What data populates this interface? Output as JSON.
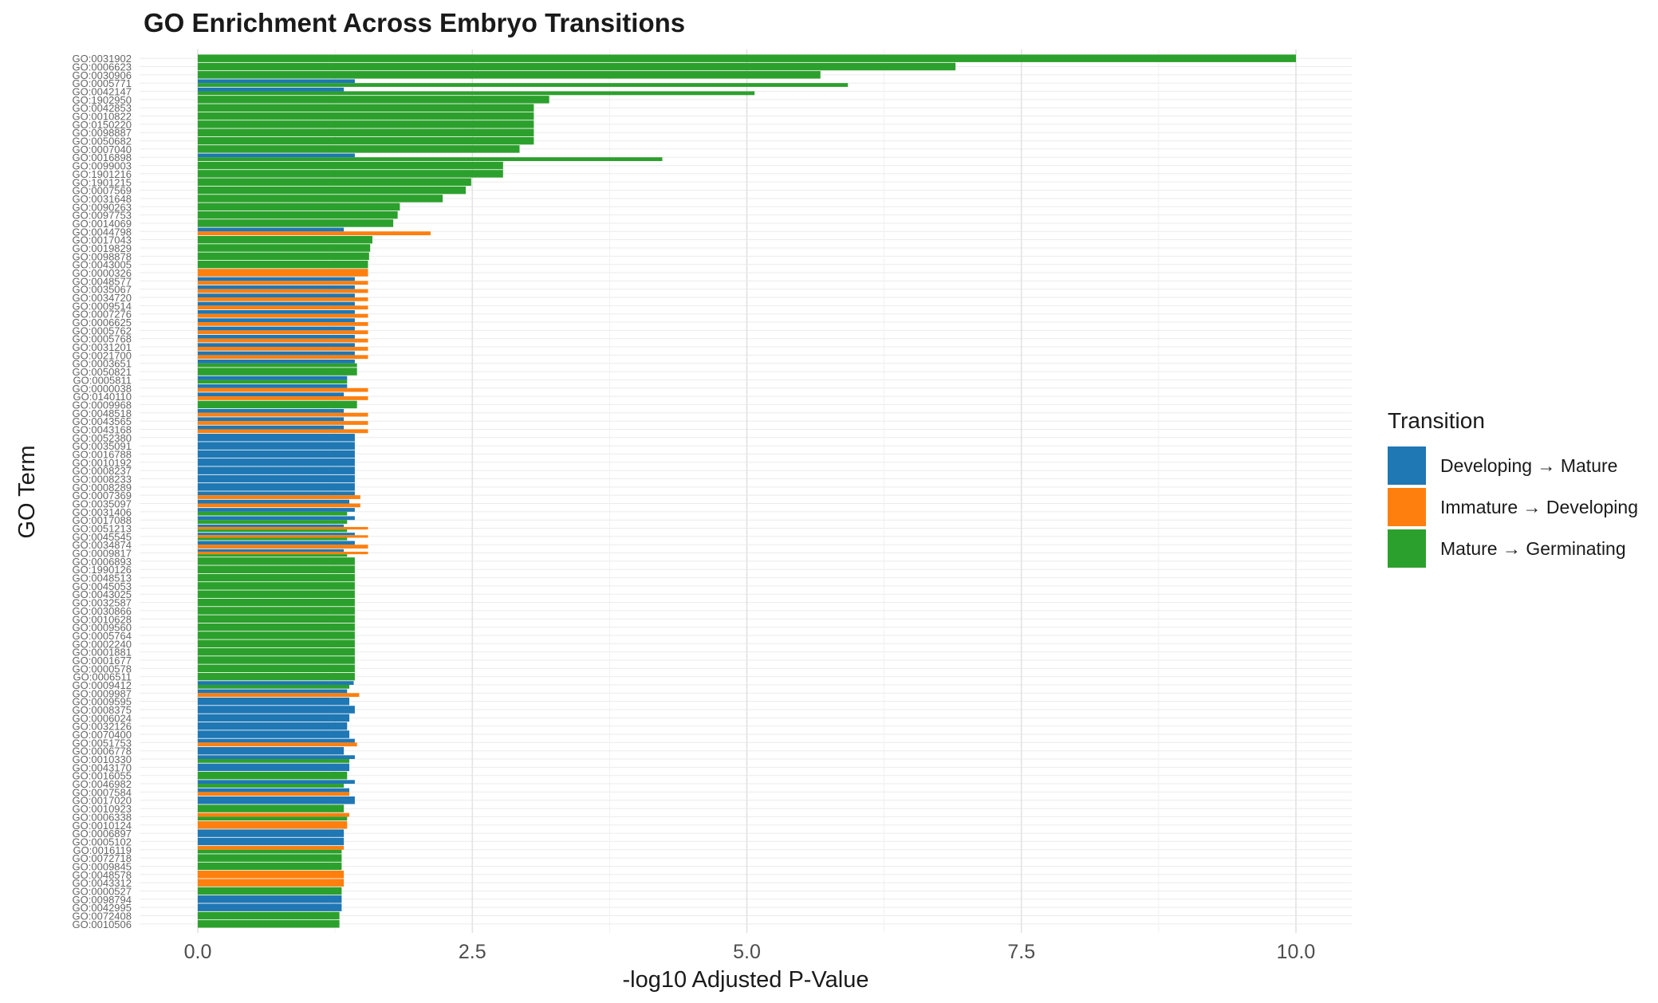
{
  "chart_data": {
    "type": "bar",
    "orientation": "horizontal",
    "title": "GO Enrichment Across Embryo Transitions",
    "xlabel": "-log10 Adjusted P-Value",
    "ylabel": "GO Term",
    "xlim": [
      0,
      10.5
    ],
    "x_ticks": [
      "0.0",
      "2.5",
      "5.0",
      "7.5",
      "10.0"
    ],
    "grid": true,
    "legend": {
      "title": "Transition",
      "placement": "right",
      "entries": [
        {
          "label": "Developing → Mature",
          "color": "#1f77b4"
        },
        {
          "label": "Immature → Developing",
          "color": "#ff7f0e"
        },
        {
          "label": "Mature → Germinating",
          "color": "#2ca02c"
        }
      ]
    },
    "categories": [
      "GO:0031902",
      "GO:0006623",
      "GO:0030906",
      "GO:0005771",
      "GO:0042147",
      "GO:1902950",
      "GO:0042853",
      "GO:0010822",
      "GO:0150220",
      "GO:0098887",
      "GO:0050682",
      "GO:0007040",
      "GO:0016898",
      "GO:0099003",
      "GO:1901216",
      "GO:1901215",
      "GO:0007569",
      "GO:0031648",
      "GO:0090263",
      "GO:0097753",
      "GO:0014069",
      "GO:0044798",
      "GO:0017043",
      "GO:0019829",
      "GO:0098878",
      "GO:0043005",
      "GO:0000326",
      "GO:0048577",
      "GO:0035067",
      "GO:0034720",
      "GO:0009514",
      "GO:0007276",
      "GO:0006625",
      "GO:0005762",
      "GO:0005768",
      "GO:0031201",
      "GO:0021700",
      "GO:0003651",
      "GO:0050821",
      "GO:0005811",
      "GO:0000038",
      "GO:0140110",
      "GO:0009968",
      "GO:0048518",
      "GO:0043565",
      "GO:0043168",
      "GO:0052380",
      "GO:0035091",
      "GO:0016788",
      "GO:0010192",
      "GO:0008237",
      "GO:0008233",
      "GO:0008289",
      "GO:0007369",
      "GO:0035097",
      "GO:0031406",
      "GO:0017088",
      "GO:0051213",
      "GO:0045545",
      "GO:0034874",
      "GO:0009817",
      "GO:0006893",
      "GO:1990126",
      "GO:0048513",
      "GO:0045053",
      "GO:0043025",
      "GO:0032587",
      "GO:0030866",
      "GO:0010628",
      "GO:0009560",
      "GO:0005764",
      "GO:0002240",
      "GO:0001881",
      "GO:0001677",
      "GO:0000578",
      "GO:0006511",
      "GO:0009412",
      "GO:0009987",
      "GO:0009595",
      "GO:0008375",
      "GO:0006024",
      "GO:0032126",
      "GO:0070400",
      "GO:0051753",
      "GO:0006778",
      "GO:0010330",
      "GO:0043170",
      "GO:0016055",
      "GO:0046982",
      "GO:0007584",
      "GO:0017020",
      "GO:0010923",
      "GO:0006338",
      "GO:0010124",
      "GO:0006897",
      "GO:0005102",
      "GO:0016119",
      "GO:0072718",
      "GO:0009845",
      "GO:0048578",
      "GO:0043312",
      "GO:0000527",
      "GO:0098794",
      "GO:0042995",
      "GO:0072408",
      "GO:0010506"
    ],
    "series": [
      {
        "name": "Developing → Mature",
        "color": "#1f77b4",
        "values": [
          null,
          null,
          null,
          1.43,
          1.33,
          null,
          null,
          null,
          null,
          null,
          null,
          null,
          1.43,
          null,
          null,
          null,
          null,
          null,
          null,
          null,
          null,
          1.33,
          null,
          null,
          null,
          null,
          null,
          1.43,
          1.43,
          1.43,
          1.43,
          1.43,
          1.43,
          1.43,
          1.43,
          1.43,
          1.43,
          1.43,
          null,
          1.36,
          1.36,
          1.33,
          null,
          1.33,
          1.33,
          1.33,
          1.43,
          1.43,
          1.43,
          1.43,
          1.43,
          1.43,
          1.43,
          1.43,
          1.38,
          1.43,
          1.43,
          1.33,
          1.43,
          1.43,
          1.33,
          null,
          null,
          null,
          null,
          null,
          null,
          null,
          null,
          null,
          null,
          null,
          null,
          null,
          null,
          null,
          1.42,
          1.36,
          1.38,
          1.43,
          1.38,
          1.36,
          1.38,
          1.43,
          1.33,
          1.43,
          1.38,
          null,
          1.43,
          1.38,
          1.43,
          null,
          null,
          null,
          1.33,
          1.33,
          null,
          null,
          null,
          null,
          null,
          null,
          1.31,
          1.31,
          null,
          null
        ]
      },
      {
        "name": "Immature → Developing",
        "color": "#ff7f0e",
        "values": [
          null,
          null,
          null,
          null,
          null,
          null,
          null,
          null,
          null,
          null,
          null,
          null,
          null,
          null,
          null,
          null,
          null,
          null,
          null,
          null,
          null,
          2.12,
          null,
          null,
          null,
          null,
          1.55,
          1.55,
          1.55,
          1.55,
          1.55,
          1.55,
          1.55,
          1.55,
          1.55,
          1.55,
          1.55,
          null,
          null,
          null,
          1.55,
          1.55,
          null,
          1.55,
          1.55,
          1.55,
          null,
          null,
          null,
          null,
          null,
          null,
          null,
          1.48,
          1.48,
          null,
          null,
          1.55,
          1.55,
          1.55,
          1.55,
          null,
          null,
          null,
          null,
          null,
          null,
          null,
          null,
          null,
          null,
          null,
          null,
          null,
          null,
          null,
          null,
          1.47,
          null,
          null,
          null,
          null,
          null,
          1.45,
          null,
          null,
          null,
          null,
          null,
          1.38,
          null,
          null,
          1.38,
          1.36,
          null,
          null,
          1.33,
          null,
          null,
          1.33,
          1.33,
          null,
          null,
          null,
          null,
          null
        ]
      },
      {
        "name": "Mature → Germinating",
        "color": "#2ca02c",
        "values": [
          10.0,
          6.9,
          5.67,
          5.92,
          5.07,
          3.2,
          3.06,
          3.06,
          3.06,
          3.06,
          3.06,
          2.93,
          4.23,
          2.78,
          2.78,
          2.49,
          2.44,
          2.23,
          1.84,
          1.82,
          1.78,
          null,
          1.59,
          1.57,
          1.56,
          1.55,
          null,
          null,
          null,
          null,
          null,
          null,
          null,
          null,
          null,
          null,
          null,
          1.45,
          1.45,
          1.36,
          null,
          null,
          1.45,
          null,
          null,
          null,
          null,
          null,
          null,
          null,
          null,
          null,
          null,
          null,
          null,
          1.36,
          1.36,
          1.36,
          1.36,
          null,
          1.36,
          1.43,
          1.43,
          1.43,
          1.43,
          1.43,
          1.43,
          1.43,
          1.43,
          1.43,
          1.43,
          1.43,
          1.43,
          1.43,
          1.43,
          1.43,
          1.38,
          null,
          null,
          null,
          null,
          null,
          null,
          null,
          null,
          1.38,
          null,
          1.36,
          1.33,
          null,
          null,
          1.33,
          1.36,
          null,
          null,
          null,
          1.31,
          1.31,
          1.31,
          null,
          null,
          1.31,
          null,
          null,
          1.29,
          1.29
        ]
      }
    ]
  }
}
